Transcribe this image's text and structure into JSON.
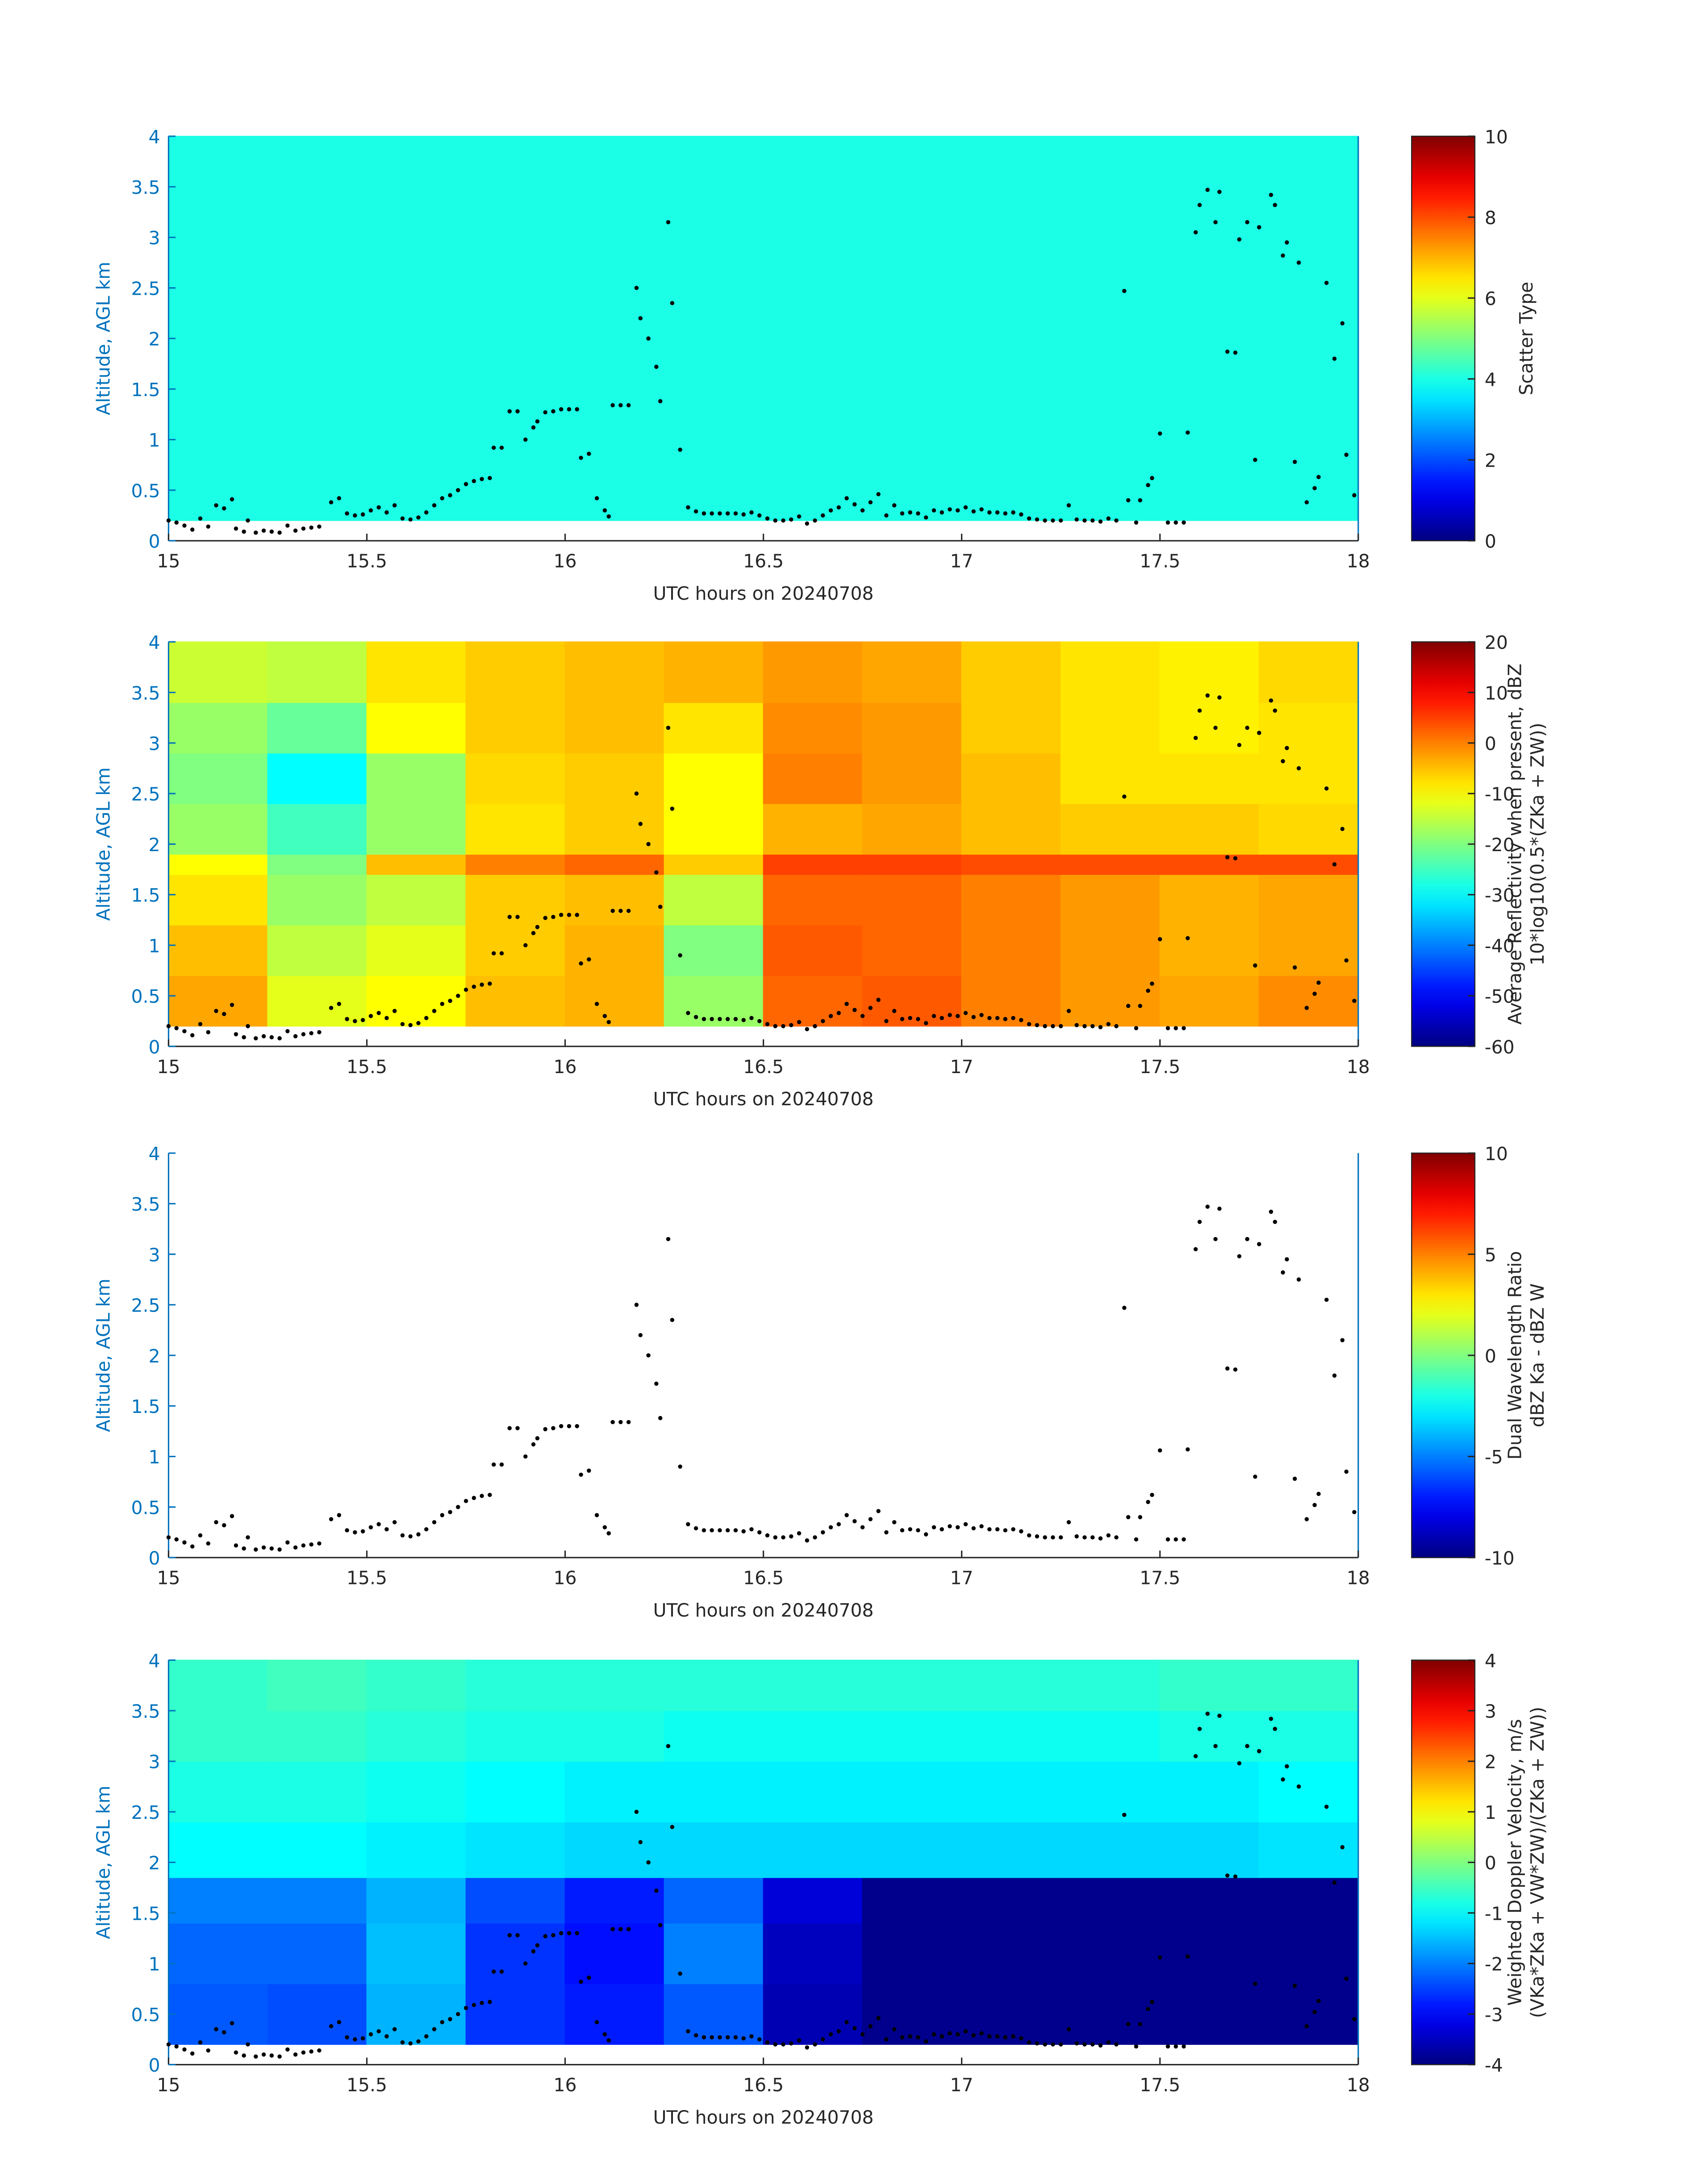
{
  "chart_data": [
    {
      "type": "heatmap",
      "xlabel": "UTC hours on 20240708",
      "ylabel": "Altitude, AGL km",
      "xlim": [
        15,
        18
      ],
      "ylim": [
        0,
        4
      ],
      "xticks": [
        15,
        15.5,
        16,
        16.5,
        17,
        17.5,
        18
      ],
      "yticks": [
        0,
        0.5,
        1,
        1.5,
        2,
        2.5,
        3,
        3.5,
        4
      ],
      "colormap": "jet",
      "colorbar": {
        "label": [
          "Scatter Type"
        ],
        "clim": [
          0,
          10
        ],
        "ticks": [
          0,
          2,
          4,
          6,
          8,
          10
        ]
      },
      "x_edges": [
        15,
        18
      ],
      "y_edges": [
        0.2,
        4
      ],
      "z": [
        [
          4
        ]
      ],
      "points": {
        "color": "#000000",
        "x": [
          15.0,
          15.02,
          15.04,
          15.06,
          15.08,
          15.1,
          15.12,
          15.14,
          15.16,
          15.17,
          15.19,
          15.2,
          15.22,
          15.24,
          15.26,
          15.28,
          15.3,
          15.32,
          15.34,
          15.36,
          15.38,
          15.41,
          15.43,
          15.45,
          15.47,
          15.49,
          15.51,
          15.53,
          15.55,
          15.57,
          15.59,
          15.61,
          15.63,
          15.65,
          15.67,
          15.69,
          15.71,
          15.73,
          15.75,
          15.77,
          15.79,
          15.81,
          15.82,
          15.84,
          15.86,
          15.88,
          15.9,
          15.92,
          15.93,
          15.95,
          15.97,
          15.99,
          16.01,
          16.03,
          16.04,
          16.06,
          16.08,
          16.1,
          16.11,
          16.12,
          16.14,
          16.16,
          16.18,
          16.19,
          16.21,
          16.23,
          16.24,
          16.26,
          16.27,
          16.29,
          16.31,
          16.33,
          16.35,
          16.37,
          16.39,
          16.41,
          16.43,
          16.45,
          16.47,
          16.49,
          16.51,
          16.53,
          16.55,
          16.57,
          16.59,
          16.61,
          16.63,
          16.65,
          16.67,
          16.69,
          16.71,
          16.73,
          16.75,
          16.77,
          16.79,
          16.81,
          16.83,
          16.85,
          16.87,
          16.89,
          16.91,
          16.93,
          16.95,
          16.97,
          16.99,
          17.01,
          17.03,
          17.05,
          17.07,
          17.09,
          17.11,
          17.13,
          17.15,
          17.17,
          17.19,
          17.21,
          17.23,
          17.25,
          17.27,
          17.29,
          17.31,
          17.33,
          17.35,
          17.37,
          17.39,
          17.41,
          17.42,
          17.44,
          17.45,
          17.47,
          17.48,
          17.5,
          17.52,
          17.54,
          17.56,
          17.57,
          17.59,
          17.6,
          17.62,
          17.64,
          17.65,
          17.67,
          17.69,
          17.7,
          17.72,
          17.74,
          17.75,
          17.78,
          17.79,
          17.81,
          17.82,
          17.84,
          17.85,
          17.87,
          17.89,
          17.9,
          17.92,
          17.94,
          17.96,
          17.97,
          17.99
        ],
        "y": [
          0.2,
          0.18,
          0.15,
          0.11,
          0.22,
          0.14,
          0.35,
          0.32,
          0.41,
          0.12,
          0.09,
          0.2,
          0.08,
          0.1,
          0.09,
          0.08,
          0.15,
          0.1,
          0.12,
          0.13,
          0.14,
          0.38,
          0.42,
          0.27,
          0.25,
          0.26,
          0.3,
          0.33,
          0.28,
          0.35,
          0.22,
          0.21,
          0.23,
          0.28,
          0.35,
          0.42,
          0.45,
          0.5,
          0.56,
          0.59,
          0.61,
          0.62,
          0.92,
          0.92,
          1.28,
          1.28,
          1.0,
          1.12,
          1.18,
          1.27,
          1.28,
          1.3,
          1.3,
          1.3,
          0.82,
          0.86,
          0.42,
          0.3,
          0.24,
          1.34,
          1.34,
          1.34,
          2.5,
          2.2,
          2.0,
          1.72,
          1.38,
          3.15,
          2.35,
          0.9,
          0.33,
          0.29,
          0.27,
          0.27,
          0.27,
          0.27,
          0.27,
          0.26,
          0.28,
          0.25,
          0.22,
          0.2,
          0.2,
          0.21,
          0.24,
          0.17,
          0.2,
          0.25,
          0.3,
          0.33,
          0.42,
          0.36,
          0.3,
          0.38,
          0.46,
          0.25,
          0.35,
          0.27,
          0.28,
          0.27,
          0.23,
          0.3,
          0.28,
          0.31,
          0.3,
          0.33,
          0.29,
          0.31,
          0.28,
          0.28,
          0.27,
          0.28,
          0.26,
          0.22,
          0.21,
          0.2,
          0.2,
          0.2,
          0.35,
          0.21,
          0.2,
          0.2,
          0.19,
          0.22,
          0.2,
          2.47,
          0.4,
          0.18,
          0.4,
          0.55,
          0.62,
          1.06,
          0.18,
          0.18,
          0.18,
          1.07,
          3.05,
          3.32,
          3.47,
          3.15,
          3.45,
          1.87,
          1.86,
          2.98,
          3.15,
          0.8,
          3.1,
          3.42,
          3.32,
          2.82,
          2.95,
          0.78,
          2.75,
          0.38,
          0.52,
          0.63,
          2.55,
          1.8,
          2.15,
          0.85,
          0.45
        ]
      }
    },
    {
      "type": "heatmap",
      "xlabel": "UTC hours on 20240708",
      "ylabel": "Altitude, AGL km",
      "xlim": [
        15,
        18
      ],
      "ylim": [
        0,
        4
      ],
      "xticks": [
        15,
        15.5,
        16,
        16.5,
        17,
        17.5,
        18
      ],
      "yticks": [
        0,
        0.5,
        1,
        1.5,
        2,
        2.5,
        3,
        3.5,
        4
      ],
      "colormap": "jet",
      "colorbar": {
        "label": [
          "Average Reflectivity when present, dBZ",
          "10*log10(0.5*(ZKa + ZW))"
        ],
        "clim": [
          -60,
          20
        ],
        "ticks": [
          -60,
          -50,
          -40,
          -30,
          -20,
          -10,
          0,
          10,
          20
        ]
      },
      "x_edges": [
        15,
        15.25,
        15.5,
        15.75,
        16,
        16.25,
        16.5,
        16.75,
        17,
        17.25,
        17.5,
        17.75,
        18
      ],
      "y_edges": [
        0.2,
        0.7,
        1.2,
        1.7,
        1.9,
        2.4,
        2.9,
        3.4,
        4
      ],
      "z": [
        [
          -3,
          -12,
          -10,
          -5,
          -4,
          -18,
          2,
          3,
          0,
          -2,
          -3,
          -1
        ],
        [
          -5,
          -15,
          -12,
          -6,
          -4,
          -20,
          3,
          2,
          0,
          -2,
          -4,
          -3
        ],
        [
          -8,
          -18,
          -15,
          -6,
          -5,
          -15,
          2,
          2,
          0,
          -2,
          -4,
          -3
        ],
        [
          -10,
          -20,
          -5,
          0,
          2,
          -6,
          5,
          5,
          4,
          4,
          4,
          4
        ],
        [
          -18,
          -25,
          -18,
          -8,
          -6,
          -10,
          -4,
          -3,
          -5,
          -6,
          -6,
          -7
        ],
        [
          -20,
          -30,
          -18,
          -7,
          -6,
          -10,
          0,
          -2,
          -5,
          -8,
          -8,
          -8
        ],
        [
          -18,
          -22,
          -10,
          -6,
          -5,
          -8,
          -1,
          -2,
          -6,
          -8,
          -9,
          -8
        ],
        [
          -14,
          -15,
          -8,
          -6,
          -5,
          -4,
          -2,
          -3,
          -6,
          -8,
          -9,
          -7
        ]
      ]
    },
    {
      "type": "heatmap",
      "xlabel": "UTC hours on 20240708",
      "ylabel": "Altitude, AGL km",
      "xlim": [
        15,
        18
      ],
      "ylim": [
        0,
        4
      ],
      "xticks": [
        15,
        15.5,
        16,
        16.5,
        17,
        17.5,
        18
      ],
      "yticks": [
        0,
        0.5,
        1,
        1.5,
        2,
        2.5,
        3,
        3.5,
        4
      ],
      "colormap": "jet",
      "colorbar": {
        "label": [
          "Dual Wavelength Ratio",
          "dBZ Ka - dBZ W"
        ],
        "clim": [
          -10,
          10
        ],
        "ticks": [
          -10,
          -5,
          0,
          5,
          10
        ]
      }
    },
    {
      "type": "heatmap",
      "xlabel": "UTC hours on 20240708",
      "ylabel": "Altitude, AGL km",
      "xlim": [
        15,
        18
      ],
      "ylim": [
        0,
        4
      ],
      "xticks": [
        15,
        15.5,
        16,
        16.5,
        17,
        17.5,
        18
      ],
      "yticks": [
        0,
        0.5,
        1,
        1.5,
        2,
        2.5,
        3,
        3.5,
        4
      ],
      "colormap": "jet",
      "colorbar": {
        "label": [
          "Weighted Doppler Velocity, m/s",
          "(VKa*ZKa + VW*ZW)/(ZKa + ZW))"
        ],
        "clim": [
          -4,
          4
        ],
        "ticks": [
          -4,
          -3,
          -2,
          -1,
          0,
          1,
          2,
          3,
          4
        ]
      },
      "x_edges": [
        15,
        15.25,
        15.5,
        15.75,
        16,
        16.25,
        16.5,
        16.75,
        17,
        17.25,
        17.5,
        17.75,
        18
      ],
      "y_edges": [
        0.2,
        0.8,
        1.4,
        1.85,
        2.4,
        3.0,
        3.5,
        4
      ],
      "z": [
        [
          -2.3,
          -2.4,
          -1.6,
          -2.6,
          -2.8,
          -2.3,
          -3.6,
          -3.9,
          -3.9,
          -3.9,
          -3.9,
          -3.9
        ],
        [
          -2.2,
          -2.2,
          -1.5,
          -2.6,
          -2.9,
          -2.0,
          -3.5,
          -3.9,
          -3.9,
          -3.9,
          -3.9,
          -3.9
        ],
        [
          -2.0,
          -2.0,
          -1.6,
          -2.4,
          -2.8,
          -2.2,
          -3.3,
          -3.9,
          -3.9,
          -3.9,
          -3.9,
          -3.9
        ],
        [
          -1.0,
          -1.0,
          -1.1,
          -1.2,
          -1.3,
          -1.3,
          -1.3,
          -1.3,
          -1.3,
          -1.3,
          -1.3,
          -1.2
        ],
        [
          -0.8,
          -0.8,
          -0.9,
          -1.0,
          -1.1,
          -1.1,
          -1.1,
          -1.1,
          -1.1,
          -1.1,
          -1.1,
          -1.0
        ],
        [
          -0.6,
          -0.6,
          -0.7,
          -0.8,
          -0.8,
          -0.9,
          -0.9,
          -0.9,
          -0.9,
          -0.9,
          -0.8,
          -0.8
        ],
        [
          -0.6,
          -0.5,
          -0.6,
          -0.7,
          -0.7,
          -0.7,
          -0.7,
          -0.7,
          -0.7,
          -0.7,
          -0.6,
          -0.6
        ]
      ]
    }
  ]
}
